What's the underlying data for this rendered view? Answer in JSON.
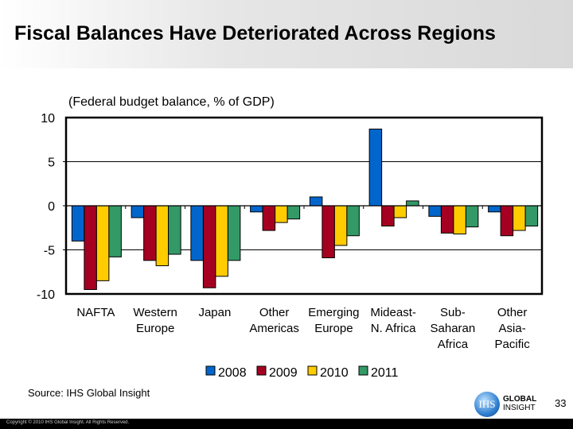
{
  "title": "Fiscal Balances Have Deteriorated Across Regions",
  "source": "Source:  IHS Global Insight",
  "page_number": "33",
  "copyright": "Copyright © 2010 IHS Global Insight. All Rights Reserved.",
  "logo": {
    "mark": "IHS",
    "line1": "GLOBAL",
    "line2": "INSIGHT"
  },
  "chart_data": {
    "type": "bar",
    "title": "",
    "subtitle": "(Federal budget balance, % of GDP)",
    "xlabel": "",
    "ylabel": "",
    "ylim": [
      -10,
      10
    ],
    "yticks": [
      "10",
      "5",
      "0",
      "-5",
      "-10"
    ],
    "grid": true,
    "legend": "bottom",
    "categories": [
      [
        "NAFTA"
      ],
      [
        "Western",
        "Europe"
      ],
      [
        "Japan"
      ],
      [
        "Other",
        "Americas"
      ],
      [
        "Emerging",
        "Europe"
      ],
      [
        "Mideast-",
        "N. Africa"
      ],
      [
        "Sub-",
        "Saharan",
        "Africa"
      ],
      [
        "Other",
        "Asia-",
        "Pacific"
      ]
    ],
    "series": [
      {
        "name": "2008",
        "color": "#0066cc",
        "values": [
          -4.0,
          -1.35,
          -6.2,
          -0.7,
          1.0,
          8.7,
          -1.2,
          -0.7
        ]
      },
      {
        "name": "2009",
        "color": "#a50021",
        "values": [
          -9.5,
          -6.2,
          -9.3,
          -2.8,
          -5.9,
          -2.3,
          -3.1,
          -3.4
        ]
      },
      {
        "name": "2010",
        "color": "#ffcc00",
        "values": [
          -8.5,
          -6.8,
          -8.0,
          -1.9,
          -4.5,
          -1.35,
          -3.2,
          -2.8
        ]
      },
      {
        "name": "2011",
        "color": "#339966",
        "values": [
          -5.8,
          -5.5,
          -6.2,
          -1.5,
          -3.4,
          0.55,
          -2.4,
          -2.3
        ]
      }
    ]
  }
}
